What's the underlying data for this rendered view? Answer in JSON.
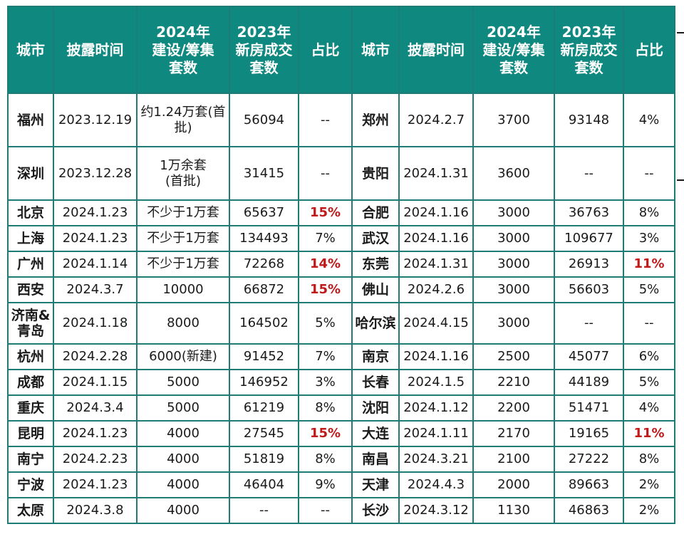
{
  "headers": [
    "城市",
    "披露时间",
    "2024年\n建设/筹集\n套数",
    "2023年\n新房成交\n套数",
    "占比",
    "城市",
    "披露时间",
    "2024年\n建设/筹集\n套数",
    "2023年\n新房成交\n套数",
    "占比"
  ],
  "colors": {
    "header_bg": "#0f8880",
    "border": "#1e7b76",
    "highlight": "#c0191a"
  },
  "left_rows": [
    {
      "city": "福州",
      "date": "2023.12.19",
      "build": "约1.24万套(首\n批)",
      "sales": "56094",
      "ratio": "--"
    },
    {
      "city": "深圳",
      "date": "2023.12.28",
      "build": "1万余套\n(首批)",
      "sales": "31415",
      "ratio": "--"
    },
    {
      "city": "北京",
      "date": "2024.1.23",
      "build": "不少于1万套",
      "sales": "65637",
      "ratio": "15%",
      "highlight": true
    },
    {
      "city": "上海",
      "date": "2024.1.23",
      "build": "不少于1万套",
      "sales": "134493",
      "ratio": "7%"
    },
    {
      "city": "广州",
      "date": "2024.1.14",
      "build": "不少于1万套",
      "sales": "72268",
      "ratio": "14%",
      "highlight": true
    },
    {
      "city": "西安",
      "date": "2024.3.7",
      "build": "10000",
      "sales": "66872",
      "ratio": "15%",
      "highlight": true
    },
    {
      "city": "济南&\n青岛",
      "date": "2024.1.18",
      "build": "8000",
      "sales": "164502",
      "ratio": "5%"
    },
    {
      "city": "杭州",
      "date": "2024.2.28",
      "build": "6000(新建)",
      "sales": "91452",
      "ratio": "7%"
    },
    {
      "city": "成都",
      "date": "2024.1.15",
      "build": "5000",
      "sales": "146952",
      "ratio": "3%"
    },
    {
      "city": "重庆",
      "date": "2024.3.4",
      "build": "5000",
      "sales": "61219",
      "ratio": "8%"
    },
    {
      "city": "昆明",
      "date": "2024.1.23",
      "build": "4000",
      "sales": "27545",
      "ratio": "15%",
      "highlight": true
    },
    {
      "city": "南宁",
      "date": "2024.2.23",
      "build": "4000",
      "sales": "51819",
      "ratio": "8%"
    },
    {
      "city": "宁波",
      "date": "2024.1.23",
      "build": "4000",
      "sales": "46404",
      "ratio": "9%"
    },
    {
      "city": "太原",
      "date": "2024.3.8",
      "build": "4000",
      "sales": "--",
      "ratio": "--"
    }
  ],
  "right_rows": [
    {
      "city": "郑州",
      "date": "2024.2.7",
      "build": "3700",
      "sales": "93148",
      "ratio": "4%"
    },
    {
      "city": "贵阳",
      "date": "2024.1.31",
      "build": "3600",
      "sales": "--",
      "ratio": "--"
    },
    {
      "city": "合肥",
      "date": "2024.1.16",
      "build": "3000",
      "sales": "36763",
      "ratio": "8%"
    },
    {
      "city": "武汉",
      "date": "2024.1.16",
      "build": "3000",
      "sales": "109677",
      "ratio": "3%"
    },
    {
      "city": "东莞",
      "date": "2024.1.31",
      "build": "3000",
      "sales": "26913",
      "ratio": "11%",
      "highlight": true
    },
    {
      "city": "佛山",
      "date": "2024.2.6",
      "build": "3000",
      "sales": "56603",
      "ratio": "5%"
    },
    {
      "city": "哈尔滨",
      "date": "2024.4.15",
      "build": "3000",
      "sales": "--",
      "ratio": "--"
    },
    {
      "city": "南京",
      "date": "2024.1.16",
      "build": "2500",
      "sales": "45077",
      "ratio": "6%"
    },
    {
      "city": "长春",
      "date": "2024.1.5",
      "build": "2210",
      "sales": "44189",
      "ratio": "5%"
    },
    {
      "city": "沈阳",
      "date": "2024.1.12",
      "build": "2200",
      "sales": "51471",
      "ratio": "4%"
    },
    {
      "city": "大连",
      "date": "2024.1.11",
      "build": "2170",
      "sales": "19165",
      "ratio": "11%",
      "highlight": true
    },
    {
      "city": "南昌",
      "date": "2024.3.21",
      "build": "2100",
      "sales": "27222",
      "ratio": "8%"
    },
    {
      "city": "天津",
      "date": "2024.4.3",
      "build": "2000",
      "sales": "89663",
      "ratio": "2%"
    },
    {
      "city": "长沙",
      "date": "2024.3.12",
      "build": "1130",
      "sales": "46863",
      "ratio": "2%"
    }
  ]
}
